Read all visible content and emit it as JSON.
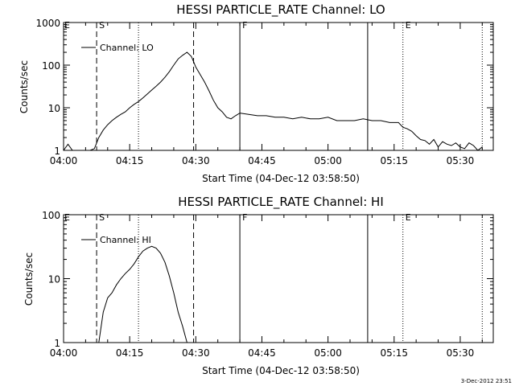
{
  "footer": {
    "timestamp": "3-Dec-2012 23:51"
  },
  "chart_data": [
    {
      "type": "line",
      "title": "HESSI PARTICLE_RATE Channel: LO",
      "xlabel": "Start Time (04-Dec-12 03:58:50)",
      "ylabel": "Counts/sec",
      "x_unit": "minutes",
      "xlim": [
        0,
        97.5
      ],
      "ylim": [
        1,
        1000
      ],
      "yscale": "log",
      "xticks": [
        "04:00",
        "04:15",
        "04:30",
        "04:45",
        "05:00",
        "05:15",
        "05:30"
      ],
      "yticks": [
        "1",
        "10",
        "100",
        "1000"
      ],
      "legend": {
        "label": "Channel: LO",
        "position": "top-left"
      },
      "markers": [
        {
          "time": "04:07.5",
          "style": "dashed",
          "label": "S"
        },
        {
          "time": "04:17",
          "style": "dotted",
          "label": ""
        },
        {
          "time": "04:29.5",
          "style": "dashed",
          "label": ""
        },
        {
          "time": "04:40",
          "style": "solid",
          "label": "F"
        },
        {
          "time": "05:09",
          "style": "solid",
          "label": ""
        },
        {
          "time": "05:17",
          "style": "dotted",
          "label": "E"
        },
        {
          "time": "05:35",
          "style": "dotted",
          "label": ""
        }
      ],
      "corner_labels": {
        "left": "E"
      },
      "series": [
        {
          "name": "Channel: LO",
          "x": [
            "04:00",
            "04:01",
            "04:02",
            "04:03",
            "04:04",
            "04:05",
            "04:06",
            "04:07",
            "04:08",
            "04:09",
            "04:10",
            "04:11",
            "04:12",
            "04:13",
            "04:14",
            "04:15",
            "04:16",
            "04:17",
            "04:18",
            "04:19",
            "04:20",
            "04:21",
            "04:22",
            "04:23",
            "04:24",
            "04:25",
            "04:26",
            "04:27",
            "04:28",
            "04:29",
            "04:29.5",
            "04:30",
            "04:31",
            "04:32",
            "04:33",
            "04:34",
            "04:35",
            "04:36",
            "04:37",
            "04:38",
            "04:39",
            "04:40",
            "04:42",
            "04:44",
            "04:46",
            "04:48",
            "04:50",
            "04:52",
            "04:54",
            "04:56",
            "04:58",
            "05:00",
            "05:02",
            "05:04",
            "05:06",
            "05:08",
            "05:10",
            "05:12",
            "05:14",
            "05:16",
            "05:17",
            "05:18",
            "05:19",
            "05:20",
            "05:21",
            "05:22",
            "05:23",
            "05:24",
            "05:25",
            "05:26",
            "05:27",
            "05:28",
            "05:29",
            "05:30",
            "05:31",
            "05:32",
            "05:33",
            "05:34",
            "05:35"
          ],
          "y": [
            1,
            1.4,
            1,
            1,
            1,
            1,
            1,
            1.1,
            2,
            3,
            4,
            5,
            6,
            7,
            8,
            10,
            12,
            14,
            17,
            21,
            26,
            32,
            40,
            52,
            70,
            100,
            140,
            170,
            200,
            160,
            120,
            90,
            60,
            40,
            25,
            15,
            10,
            8,
            6,
            5.5,
            6.5,
            7.5,
            7,
            6.5,
            6.5,
            6,
            6,
            5.5,
            6,
            5.5,
            5.5,
            6,
            5,
            5,
            5,
            5.5,
            5,
            5,
            4.5,
            4.5,
            3.5,
            3.2,
            2.8,
            2.2,
            1.8,
            1.7,
            1.4,
            1.8,
            1.2,
            1.6,
            1.4,
            1.3,
            1.5,
            1.2,
            1.1,
            1.5,
            1.3,
            1,
            1.2
          ]
        }
      ]
    },
    {
      "type": "line",
      "title": "HESSI PARTICLE_RATE Channel: HI",
      "xlabel": "Start Time (04-Dec-12 03:58:50)",
      "ylabel": "Counts/sec",
      "x_unit": "minutes",
      "xlim": [
        0,
        97.5
      ],
      "ylim": [
        1,
        100
      ],
      "yscale": "log",
      "xticks": [
        "04:00",
        "04:15",
        "04:30",
        "04:45",
        "05:00",
        "05:15",
        "05:30"
      ],
      "yticks": [
        "1",
        "10",
        "100"
      ],
      "legend": {
        "label": "Channel: HI",
        "position": "top-left"
      },
      "markers": [
        {
          "time": "04:07.5",
          "style": "dashed",
          "label": "S"
        },
        {
          "time": "04:17",
          "style": "dotted",
          "label": ""
        },
        {
          "time": "04:29.5",
          "style": "dashed",
          "label": ""
        },
        {
          "time": "04:40",
          "style": "solid",
          "label": "F"
        },
        {
          "time": "05:09",
          "style": "solid",
          "label": ""
        },
        {
          "time": "05:17",
          "style": "dotted",
          "label": "E"
        },
        {
          "time": "05:35",
          "style": "dotted",
          "label": ""
        }
      ],
      "corner_labels": {
        "left": "E"
      },
      "series": [
        {
          "name": "Channel: HI",
          "x": [
            "04:08",
            "04:09",
            "04:10",
            "04:11",
            "04:12",
            "04:13",
            "04:14",
            "04:15",
            "04:16",
            "04:17",
            "04:18",
            "04:19",
            "04:20",
            "04:21",
            "04:22",
            "04:23",
            "04:24",
            "04:25",
            "04:26",
            "04:27",
            "04:28"
          ],
          "y": [
            1,
            3,
            5,
            6,
            8,
            10,
            12,
            14,
            17,
            22,
            27,
            30,
            32,
            30,
            25,
            18,
            11,
            6,
            3,
            1.8,
            1
          ]
        }
      ]
    }
  ]
}
